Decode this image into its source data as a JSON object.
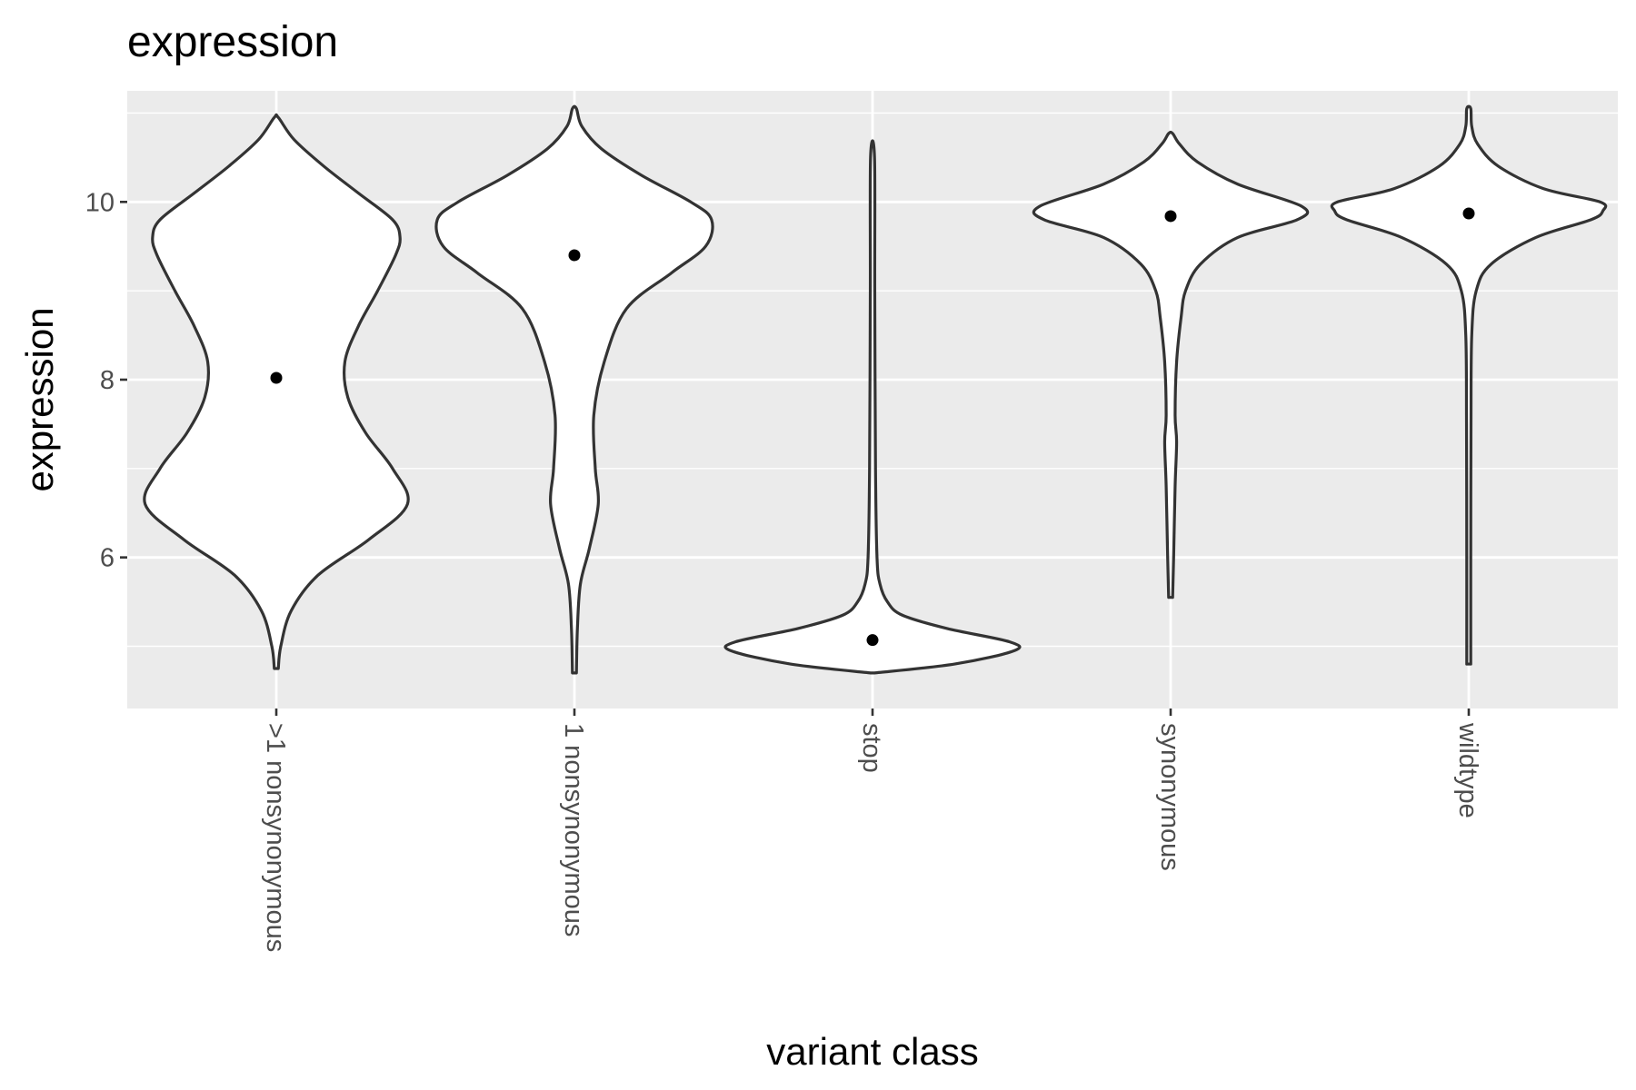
{
  "chart_data": {
    "type": "violin",
    "title": "expression",
    "xlabel": "variant class",
    "ylabel": "expression",
    "ylim": [
      4.3,
      11.25
    ],
    "y_major_ticks": [
      6,
      8,
      10
    ],
    "y_minor_ticks": [
      5,
      7,
      9,
      11
    ],
    "grid": true,
    "legend": "none",
    "colors": {
      "panel": "#ebebeb",
      "violin_fill": "#ffffff",
      "violin_stroke": "#333333",
      "point": "#000000",
      "grid": "#ffffff"
    },
    "categories": [
      ">1 nonsynonymous",
      "1 nonsynonymous",
      "stop",
      "synonymous",
      "wildtype"
    ],
    "series": [
      {
        "category": ">1 nonsynonymous",
        "mean": 8.02,
        "ymin": 4.75,
        "ymax": 10.95,
        "profile": [
          [
            4.75,
            0
          ],
          [
            5.0,
            0.03
          ],
          [
            5.4,
            0.1
          ],
          [
            5.8,
            0.28
          ],
          [
            6.2,
            0.62
          ],
          [
            6.6,
            0.88
          ],
          [
            7.0,
            0.78
          ],
          [
            7.4,
            0.6
          ],
          [
            7.8,
            0.48
          ],
          [
            8.2,
            0.46
          ],
          [
            8.6,
            0.55
          ],
          [
            9.0,
            0.68
          ],
          [
            9.4,
            0.8
          ],
          [
            9.6,
            0.83
          ],
          [
            9.8,
            0.78
          ],
          [
            10.1,
            0.55
          ],
          [
            10.4,
            0.32
          ],
          [
            10.7,
            0.12
          ],
          [
            10.95,
            0
          ]
        ]
      },
      {
        "category": "1 nonsynonymous",
        "mean": 9.4,
        "ymin": 4.7,
        "ymax": 11.05,
        "profile": [
          [
            4.7,
            0
          ],
          [
            5.2,
            0.02
          ],
          [
            5.7,
            0.04
          ],
          [
            6.1,
            0.1
          ],
          [
            6.6,
            0.16
          ],
          [
            7.0,
            0.14
          ],
          [
            7.6,
            0.13
          ],
          [
            8.2,
            0.2
          ],
          [
            8.8,
            0.35
          ],
          [
            9.2,
            0.65
          ],
          [
            9.5,
            0.88
          ],
          [
            9.8,
            0.92
          ],
          [
            10.0,
            0.78
          ],
          [
            10.3,
            0.45
          ],
          [
            10.6,
            0.18
          ],
          [
            10.85,
            0.05
          ],
          [
            11.05,
            0
          ]
        ]
      },
      {
        "category": "stop",
        "mean": 5.07,
        "ymin": 4.7,
        "ymax": 10.5,
        "profile": [
          [
            4.7,
            0
          ],
          [
            4.8,
            0.55
          ],
          [
            4.95,
            0.95
          ],
          [
            5.05,
            0.92
          ],
          [
            5.2,
            0.5
          ],
          [
            5.35,
            0.2
          ],
          [
            5.5,
            0.1
          ],
          [
            5.7,
            0.05
          ],
          [
            6.0,
            0.03
          ],
          [
            7.0,
            0.02
          ],
          [
            9.0,
            0.015
          ],
          [
            10.5,
            0
          ]
        ]
      },
      {
        "category": "synonymous",
        "mean": 9.84,
        "ymin": 5.55,
        "ymax": 10.77,
        "profile": [
          [
            5.55,
            0
          ],
          [
            6.0,
            0.02
          ],
          [
            6.8,
            0.03
          ],
          [
            7.3,
            0.04
          ],
          [
            7.6,
            0.03
          ],
          [
            8.2,
            0.04
          ],
          [
            8.7,
            0.07
          ],
          [
            9.0,
            0.1
          ],
          [
            9.3,
            0.2
          ],
          [
            9.6,
            0.45
          ],
          [
            9.8,
            0.85
          ],
          [
            9.95,
            0.88
          ],
          [
            10.2,
            0.45
          ],
          [
            10.45,
            0.18
          ],
          [
            10.65,
            0.06
          ],
          [
            10.77,
            0
          ]
        ]
      },
      {
        "category": "wildtype",
        "mean": 9.87,
        "ymin": 4.8,
        "ymax": 11.05,
        "profile": [
          [
            4.8,
            0
          ],
          [
            6.0,
            0.01
          ],
          [
            7.5,
            0.015
          ],
          [
            8.5,
            0.02
          ],
          [
            9.0,
            0.05
          ],
          [
            9.3,
            0.15
          ],
          [
            9.6,
            0.45
          ],
          [
            9.8,
            0.82
          ],
          [
            9.9,
            0.9
          ],
          [
            10.0,
            0.88
          ],
          [
            10.15,
            0.5
          ],
          [
            10.4,
            0.2
          ],
          [
            10.65,
            0.06
          ],
          [
            10.85,
            0.02
          ],
          [
            11.05,
            0
          ]
        ]
      }
    ]
  }
}
